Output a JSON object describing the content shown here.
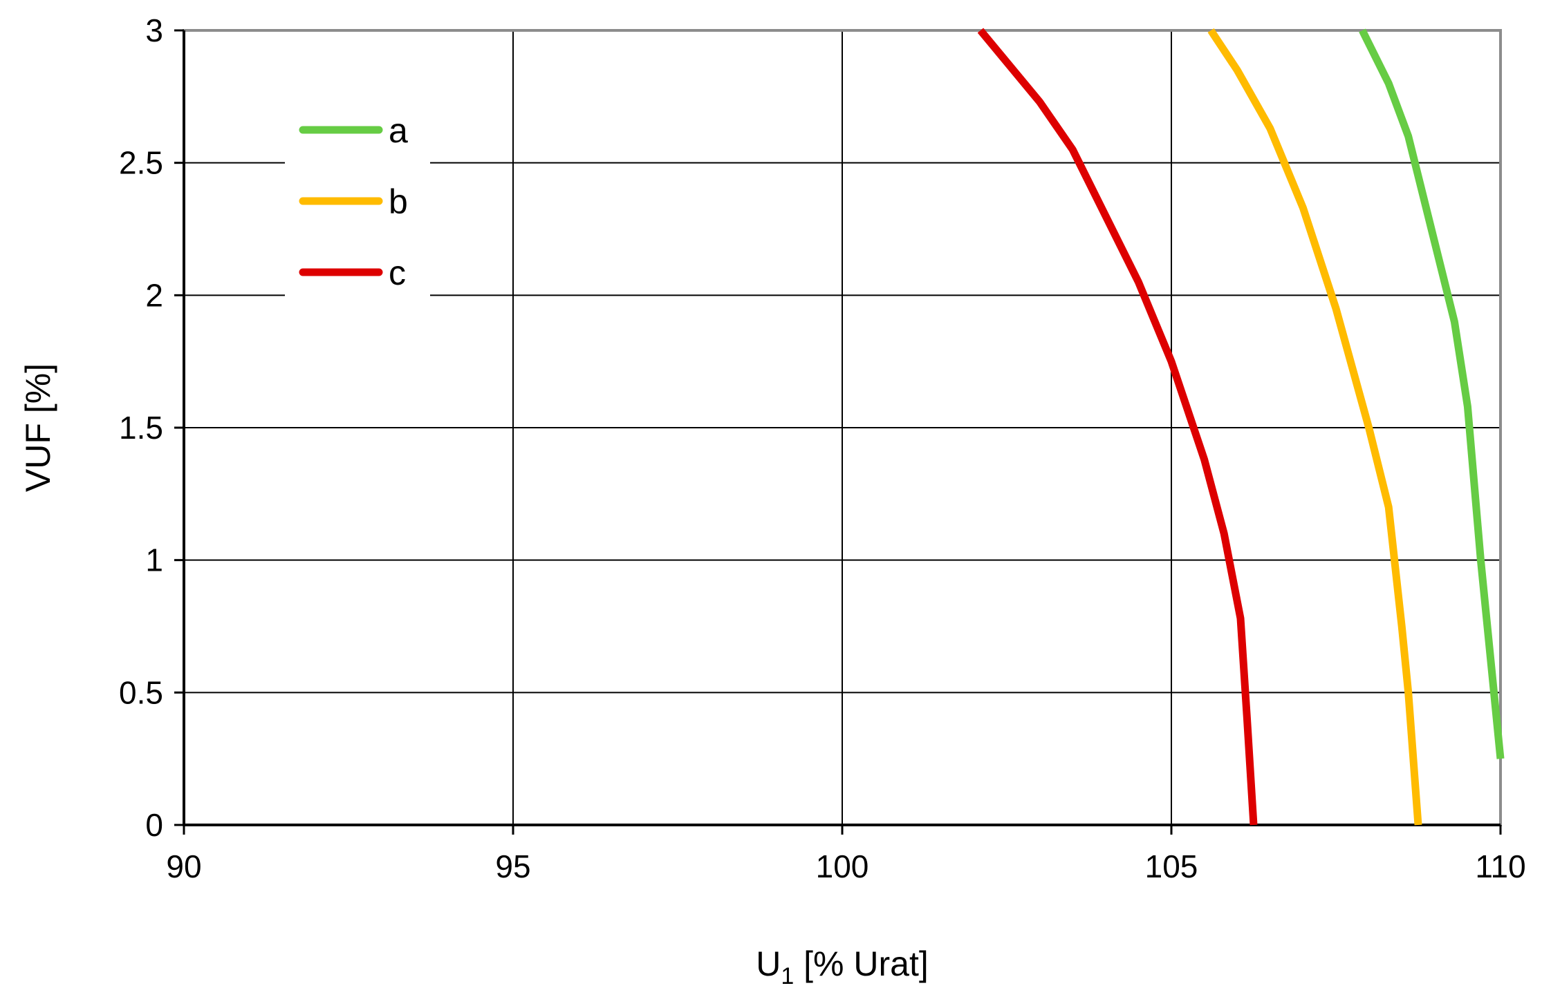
{
  "chart_data": {
    "type": "line",
    "title": "",
    "xlabel_main": "U",
    "xlabel_sub": "1",
    "xlabel_rest": " [% Urat]",
    "ylabel": "VUF [%]",
    "xlim": [
      90,
      110
    ],
    "ylim": [
      0,
      3
    ],
    "xticks": [
      90,
      95,
      100,
      105,
      110
    ],
    "yticks": [
      0,
      0.5,
      1,
      1.5,
      2,
      2.5,
      3
    ],
    "xtick_labels": [
      "90",
      "95",
      "100",
      "105",
      "110"
    ],
    "ytick_labels": [
      "0",
      "0.5",
      "1",
      "1.5",
      "2",
      "2.5",
      "3"
    ],
    "grid": true,
    "legend_position": "top-left",
    "series": [
      {
        "name": "a",
        "color": "#66cc44",
        "points": [
          [
            110.0,
            0.25
          ],
          [
            109.9,
            0.5
          ],
          [
            109.7,
            1.0
          ],
          [
            109.5,
            1.58
          ],
          [
            109.3,
            1.9
          ],
          [
            109.0,
            2.2
          ],
          [
            108.6,
            2.6
          ],
          [
            108.3,
            2.8
          ],
          [
            107.9,
            3.0
          ]
        ]
      },
      {
        "name": "b",
        "color": "#ffbb00",
        "points": [
          [
            108.75,
            0.0
          ],
          [
            108.6,
            0.5
          ],
          [
            108.5,
            0.75
          ],
          [
            108.3,
            1.2
          ],
          [
            108.0,
            1.5
          ],
          [
            107.5,
            1.95
          ],
          [
            107.0,
            2.33
          ],
          [
            106.5,
            2.63
          ],
          [
            106.0,
            2.85
          ],
          [
            105.6,
            3.0
          ]
        ]
      },
      {
        "name": "c",
        "color": "#dd0000",
        "points": [
          [
            106.25,
            0.0
          ],
          [
            106.15,
            0.4
          ],
          [
            106.05,
            0.78
          ],
          [
            105.8,
            1.1
          ],
          [
            105.5,
            1.38
          ],
          [
            105.0,
            1.75
          ],
          [
            104.5,
            2.05
          ],
          [
            104.0,
            2.3
          ],
          [
            103.5,
            2.55
          ],
          [
            103.0,
            2.73
          ],
          [
            102.5,
            2.88
          ],
          [
            102.1,
            3.0
          ]
        ]
      }
    ]
  }
}
